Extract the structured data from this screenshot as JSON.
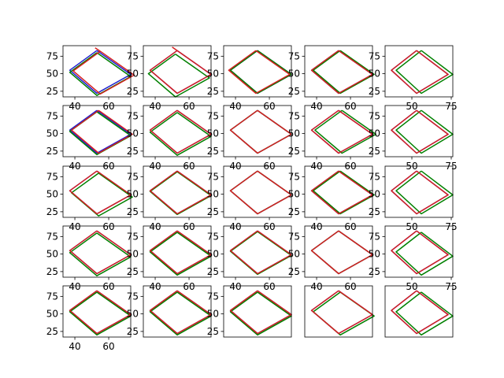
{
  "figure": {
    "layout": "5x5 grid of small line plots",
    "background": "#ffffff"
  },
  "colors": {
    "blue": "#1f1fd0",
    "green": "#008000",
    "red": "#d62020",
    "axes": "#000000"
  },
  "chart_data": {
    "type": "line",
    "grid": false,
    "legend": "none",
    "rows": 5,
    "cols": 5,
    "series_order": [
      "blue",
      "green",
      "red"
    ],
    "base_shape": {
      "x": [
        53,
        73,
        53,
        37,
        53
      ],
      "y": [
        83,
        49,
        22,
        55,
        83
      ]
    },
    "ylim": [
      17,
      90
    ],
    "ytick_labels": [
      "25",
      "50",
      "75"
    ],
    "ytick_values": [
      25,
      50,
      75
    ],
    "panels": [
      {
        "xlim": [
          33,
          73
        ],
        "xticks": [
          40,
          60
        ],
        "offsets": {
          "blue": [
            0,
            0
          ],
          "green": [
            0,
            -3
          ],
          "red": [
            2,
            -1
          ]
        },
        "show_yticks": true,
        "show_xticks": true,
        "red_tail": true
      },
      {
        "xlim": [
          33,
          73
        ],
        "xticks": [
          40,
          60
        ],
        "offsets": {
          "blue": [
            0,
            0
          ],
          "green": [
            -1,
            -5
          ],
          "red": [
            0,
            0
          ]
        },
        "show_yticks": true,
        "show_xticks": true,
        "red_tail": true
      },
      {
        "xlim": [
          33,
          73
        ],
        "xticks": [
          40,
          60
        ],
        "offsets": {
          "blue": [
            0,
            0
          ],
          "green": [
            0,
            0
          ],
          "red": [
            -1,
            0
          ]
        },
        "show_yticks": true,
        "show_xticks": true,
        "red_tail": false
      },
      {
        "xlim": [
          33,
          73
        ],
        "xticks": [
          40,
          60
        ],
        "offsets": {
          "blue": [
            0,
            0
          ],
          "green": [
            1,
            0
          ],
          "red": [
            0,
            0
          ]
        },
        "show_yticks": true,
        "show_xticks": true,
        "red_tail": false
      },
      {
        "xlim": [
          33,
          76
        ],
        "xticks": [
          50,
          75
        ],
        "offsets": {
          "blue": [
            0,
            0
          ],
          "green": [
            3,
            0
          ],
          "red": [
            0,
            0
          ]
        },
        "show_yticks": true,
        "show_xticks": true,
        "red_tail": false
      },
      {
        "xlim": [
          33,
          73
        ],
        "xticks": [
          40,
          60
        ],
        "offsets": {
          "blue": [
            0,
            0
          ],
          "green": [
            0,
            -2
          ],
          "red": [
            1,
            0
          ]
        },
        "show_yticks": true,
        "show_xticks": true,
        "red_tail": false
      },
      {
        "xlim": [
          33,
          73
        ],
        "xticks": [
          40,
          60
        ],
        "offsets": {
          "blue": [
            0,
            0
          ],
          "green": [
            0,
            -3
          ],
          "red": [
            0,
            0
          ]
        },
        "show_yticks": true,
        "show_xticks": true,
        "red_tail": false
      },
      {
        "xlim": [
          33,
          73
        ],
        "xticks": [
          40,
          60
        ],
        "offsets": {
          "blue": [
            0,
            0
          ],
          "green": [
            0,
            0
          ],
          "red": [
            0,
            0
          ]
        },
        "show_yticks": true,
        "show_xticks": true,
        "red_tail": false
      },
      {
        "xlim": [
          33,
          73
        ],
        "xticks": [
          40,
          60
        ],
        "offsets": {
          "blue": [
            0,
            0
          ],
          "green": [
            2,
            0
          ],
          "red": [
            0,
            0
          ]
        },
        "show_yticks": true,
        "show_xticks": true,
        "red_tail": false
      },
      {
        "xlim": [
          33,
          76
        ],
        "xticks": [
          50,
          75
        ],
        "offsets": {
          "blue": [
            0,
            0
          ],
          "green": [
            3,
            0
          ],
          "red": [
            0,
            0
          ]
        },
        "show_yticks": true,
        "show_xticks": true,
        "red_tail": false
      },
      {
        "xlim": [
          33,
          73
        ],
        "xticks": [
          40,
          60
        ],
        "offsets": {
          "blue": [
            0,
            0
          ],
          "green": [
            1,
            -3
          ],
          "red": [
            0,
            0
          ]
        },
        "show_yticks": true,
        "show_xticks": true,
        "red_tail": false
      },
      {
        "xlim": [
          33,
          73
        ],
        "xticks": [
          40,
          60
        ],
        "offsets": {
          "blue": [
            0,
            0
          ],
          "green": [
            0,
            -1
          ],
          "red": [
            0,
            0
          ]
        },
        "show_yticks": true,
        "show_xticks": true,
        "red_tail": false
      },
      {
        "xlim": [
          33,
          73
        ],
        "xticks": [
          40,
          60
        ],
        "offsets": {
          "blue": [
            0,
            0
          ],
          "green": [
            0,
            0
          ],
          "red": [
            0,
            0
          ]
        },
        "show_yticks": true,
        "show_xticks": true,
        "red_tail": false
      },
      {
        "xlim": [
          33,
          73
        ],
        "xticks": [
          40,
          60
        ],
        "offsets": {
          "blue": [
            0,
            0
          ],
          "green": [
            1,
            0
          ],
          "red": [
            0,
            0
          ]
        },
        "show_yticks": true,
        "show_xticks": true,
        "red_tail": false
      },
      {
        "xlim": [
          33,
          76
        ],
        "xticks": [
          50,
          75
        ],
        "offsets": {
          "blue": [
            0,
            0
          ],
          "green": [
            3,
            0
          ],
          "red": [
            0,
            0
          ]
        },
        "show_yticks": true,
        "show_xticks": true,
        "red_tail": false
      },
      {
        "xlim": [
          33,
          73
        ],
        "xticks": [
          40,
          60
        ],
        "offsets": {
          "blue": [
            0,
            0
          ],
          "green": [
            0,
            -3
          ],
          "red": [
            0,
            0
          ]
        },
        "show_yticks": true,
        "show_xticks": true,
        "red_tail": false
      },
      {
        "xlim": [
          33,
          73
        ],
        "xticks": [
          40,
          60
        ],
        "offsets": {
          "blue": [
            0,
            0
          ],
          "green": [
            0,
            -2
          ],
          "red": [
            0,
            0
          ]
        },
        "show_yticks": true,
        "show_xticks": true,
        "red_tail": false
      },
      {
        "xlim": [
          33,
          73
        ],
        "xticks": [
          40,
          60
        ],
        "offsets": {
          "blue": [
            0,
            0
          ],
          "green": [
            0,
            -1
          ],
          "red": [
            0,
            0
          ]
        },
        "show_yticks": true,
        "show_xticks": true,
        "red_tail": false
      },
      {
        "xlim": [
          33,
          73
        ],
        "xticks": [
          40,
          60
        ],
        "offsets": {
          "blue": [
            0,
            0
          ],
          "green": [
            0,
            0
          ],
          "red": [
            0,
            0
          ]
        },
        "show_yticks": true,
        "show_xticks": true,
        "red_tail": false
      },
      {
        "xlim": [
          33,
          76
        ],
        "xticks": [
          50,
          75
        ],
        "offsets": {
          "blue": [
            0,
            0
          ],
          "green": [
            3,
            -2
          ],
          "red": [
            0,
            0
          ]
        },
        "show_yticks": true,
        "show_xticks": true,
        "red_tail": false
      },
      {
        "xlim": [
          33,
          73
        ],
        "xticks": [
          40,
          60
        ],
        "offsets": {
          "blue": [
            0,
            0
          ],
          "green": [
            0,
            -2
          ],
          "red": [
            0,
            0
          ]
        },
        "show_yticks": true,
        "show_xticks": true,
        "red_tail": false
      },
      {
        "xlim": [
          33,
          73
        ],
        "xticks": [
          40,
          60
        ],
        "offsets": {
          "blue": [
            0,
            0
          ],
          "green": [
            0,
            -2
          ],
          "red": [
            0,
            0
          ]
        },
        "show_yticks": true,
        "show_xticks": false,
        "red_tail": false
      },
      {
        "xlim": [
          33,
          73
        ],
        "xticks": [
          40,
          60
        ],
        "offsets": {
          "blue": [
            0,
            0
          ],
          "green": [
            0,
            -2
          ],
          "red": [
            0,
            0
          ]
        },
        "show_yticks": true,
        "show_xticks": false,
        "red_tail": false
      },
      {
        "xlim": [
          33,
          73
        ],
        "xticks": [
          40,
          60
        ],
        "offsets": {
          "blue": [
            0,
            0
          ],
          "green": [
            1,
            -2
          ],
          "red": [
            0,
            0
          ]
        },
        "show_yticks": false,
        "show_xticks": false,
        "red_tail": false
      },
      {
        "xlim": [
          33,
          76
        ],
        "xticks": [
          50,
          75
        ],
        "offsets": {
          "blue": [
            0,
            0
          ],
          "green": [
            3,
            -2
          ],
          "red": [
            0,
            0
          ]
        },
        "show_yticks": false,
        "show_xticks": false,
        "red_tail": false
      }
    ]
  }
}
